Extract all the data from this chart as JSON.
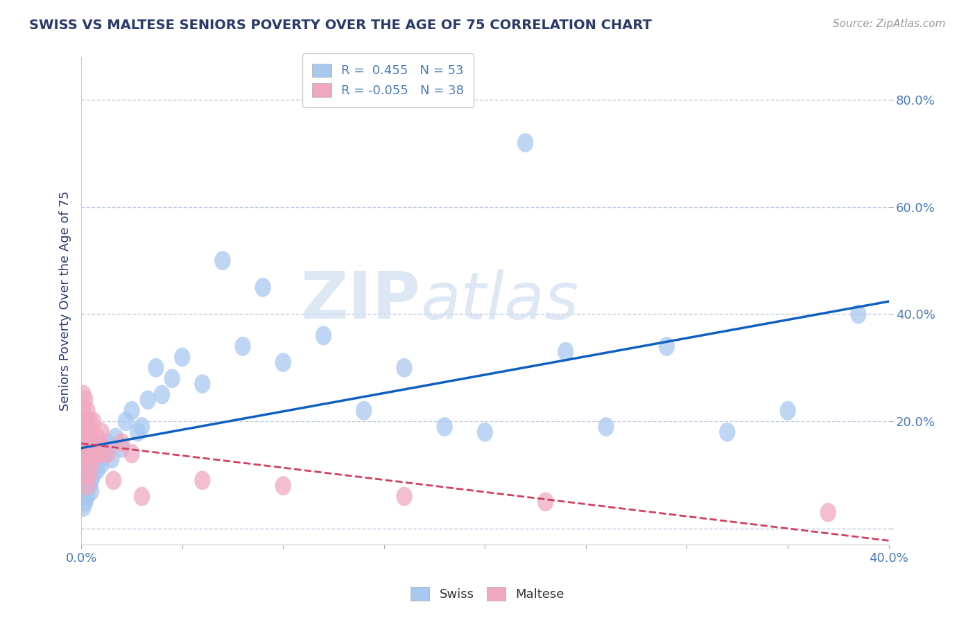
{
  "title": "SWISS VS MALTESE SENIORS POVERTY OVER THE AGE OF 75 CORRELATION CHART",
  "source": "Source: ZipAtlas.com",
  "xlabel": "",
  "ylabel": "Seniors Poverty Over the Age of 75",
  "xlim": [
    0.0,
    0.4
  ],
  "ylim": [
    -0.03,
    0.88
  ],
  "yticks": [
    0.0,
    0.2,
    0.4,
    0.6,
    0.8
  ],
  "xticks": [
    0.0,
    0.05,
    0.1,
    0.15,
    0.2,
    0.25,
    0.3,
    0.35,
    0.4
  ],
  "xtick_labels": [
    "0.0%",
    "",
    "",
    "",
    "",
    "",
    "",
    "",
    "40.0%"
  ],
  "ytick_labels": [
    "",
    "20.0%",
    "40.0%",
    "60.0%",
    "80.0%"
  ],
  "swiss_R": 0.455,
  "swiss_N": 53,
  "maltese_R": -0.055,
  "maltese_N": 38,
  "swiss_color": "#a8c8f0",
  "maltese_color": "#f0a8c0",
  "swiss_line_color": "#1060c0",
  "maltese_line_color": "#d04060",
  "swiss_x": [
    0.001,
    0.001,
    0.001,
    0.002,
    0.002,
    0.002,
    0.002,
    0.003,
    0.003,
    0.003,
    0.004,
    0.004,
    0.005,
    0.005,
    0.005,
    0.006,
    0.007,
    0.007,
    0.008,
    0.009,
    0.01,
    0.011,
    0.012,
    0.013,
    0.015,
    0.017,
    0.02,
    0.022,
    0.025,
    0.028,
    0.03,
    0.033,
    0.037,
    0.04,
    0.045,
    0.05,
    0.06,
    0.07,
    0.08,
    0.09,
    0.1,
    0.12,
    0.14,
    0.16,
    0.18,
    0.2,
    0.22,
    0.24,
    0.26,
    0.29,
    0.32,
    0.35,
    0.385
  ],
  "swiss_y": [
    0.04,
    0.06,
    0.08,
    0.05,
    0.07,
    0.1,
    0.12,
    0.06,
    0.09,
    0.11,
    0.08,
    0.1,
    0.07,
    0.09,
    0.11,
    0.1,
    0.12,
    0.14,
    0.11,
    0.13,
    0.12,
    0.15,
    0.14,
    0.16,
    0.13,
    0.17,
    0.15,
    0.2,
    0.22,
    0.18,
    0.19,
    0.24,
    0.3,
    0.25,
    0.28,
    0.32,
    0.27,
    0.5,
    0.34,
    0.45,
    0.31,
    0.36,
    0.22,
    0.3,
    0.19,
    0.18,
    0.72,
    0.33,
    0.19,
    0.34,
    0.18,
    0.22,
    0.4
  ],
  "maltese_x": [
    0.001,
    0.001,
    0.001,
    0.001,
    0.002,
    0.002,
    0.002,
    0.002,
    0.002,
    0.003,
    0.003,
    0.003,
    0.003,
    0.003,
    0.004,
    0.004,
    0.004,
    0.004,
    0.005,
    0.005,
    0.005,
    0.006,
    0.006,
    0.007,
    0.008,
    0.009,
    0.01,
    0.011,
    0.013,
    0.016,
    0.02,
    0.025,
    0.03,
    0.06,
    0.1,
    0.16,
    0.23,
    0.37
  ],
  "maltese_y": [
    0.25,
    0.22,
    0.18,
    0.15,
    0.24,
    0.2,
    0.17,
    0.13,
    0.1,
    0.22,
    0.19,
    0.16,
    0.13,
    0.08,
    0.2,
    0.17,
    0.14,
    0.1,
    0.18,
    0.15,
    0.12,
    0.2,
    0.16,
    0.14,
    0.17,
    0.14,
    0.18,
    0.15,
    0.14,
    0.09,
    0.16,
    0.14,
    0.06,
    0.09,
    0.08,
    0.06,
    0.05,
    0.03
  ],
  "watermark_zip": "ZIP",
  "watermark_atlas": "atlas",
  "background_color": "#ffffff",
  "grid_color": "#c0cce0",
  "title_color": "#2a3a6a",
  "tick_color": "#4a7abf",
  "legend_text_color": "#4a7abf"
}
